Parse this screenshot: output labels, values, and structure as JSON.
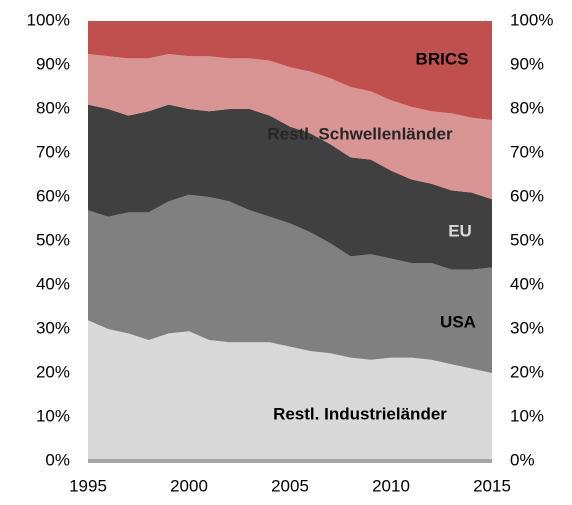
{
  "chart_data": {
    "type": "stacked_area",
    "x": [
      1995,
      1996,
      1997,
      1998,
      1999,
      2000,
      2001,
      2002,
      2003,
      2004,
      2005,
      2006,
      2007,
      2008,
      2009,
      2010,
      2011,
      2012,
      2013,
      2014,
      2015
    ],
    "series": [
      {
        "name": "Restl. Industrieländer",
        "color": "#d9d9d9",
        "values": [
          32,
          30,
          29,
          27.5,
          29,
          29.5,
          27.5,
          27,
          27,
          27,
          26,
          25,
          24.5,
          23.5,
          23,
          23.5,
          23.5,
          23,
          22,
          21,
          20
        ]
      },
      {
        "name": "USA",
        "color": "#808080",
        "values": [
          25,
          25.5,
          27.5,
          29,
          30,
          31,
          32.5,
          32,
          30,
          28.5,
          28,
          27,
          25,
          23,
          24,
          22.5,
          21.5,
          22,
          21.5,
          22.5,
          24
        ]
      },
      {
        "name": "EU",
        "color": "#404040",
        "values": [
          24,
          24.5,
          22,
          23,
          22,
          19.5,
          19.5,
          21,
          23,
          23,
          22,
          22.5,
          22.5,
          22.5,
          21.5,
          20,
          19,
          18,
          18,
          17.5,
          15.5
        ]
      },
      {
        "name": "Restl. Schwellenländer",
        "color": "#d99594",
        "values": [
          11.5,
          12,
          13,
          12,
          11.5,
          12,
          12.5,
          11.5,
          11.5,
          12.5,
          13.5,
          14,
          15,
          16,
          15.5,
          16,
          16.5,
          16.5,
          17.5,
          17,
          18
        ]
      },
      {
        "name": "BRICS",
        "color": "#c0504d",
        "values": [
          7.5,
          8,
          8.5,
          8.5,
          7.5,
          8,
          8,
          8.5,
          8.5,
          9,
          10.5,
          11.5,
          13,
          15,
          16,
          18,
          19.5,
          20.5,
          21,
          22,
          22.5
        ]
      }
    ],
    "xlim": [
      1995,
      2015
    ],
    "xticks": [
      1995,
      2000,
      2005,
      2010,
      2015
    ],
    "ylim": [
      0,
      100
    ],
    "yticks": [
      {
        "value": 0,
        "label": "0%"
      },
      {
        "value": 10,
        "label": "10%"
      },
      {
        "value": 20,
        "label": "20%"
      },
      {
        "value": 30,
        "label": "30%"
      },
      {
        "value": 40,
        "label": "40%"
      },
      {
        "value": 50,
        "label": "50%"
      },
      {
        "value": 60,
        "label": "60%"
      },
      {
        "value": 70,
        "label": "70%"
      },
      {
        "value": 80,
        "label": "80%"
      },
      {
        "value": 90,
        "label": "90%"
      },
      {
        "value": 100,
        "label": "100%"
      }
    ],
    "y2lim": [
      0,
      100
    ],
    "y2ticks": [
      {
        "value": 0,
        "label": "0%"
      },
      {
        "value": 10,
        "label": "10%"
      },
      {
        "value": 20,
        "label": "20%"
      },
      {
        "value": 30,
        "label": "30%"
      },
      {
        "value": 40,
        "label": "40%"
      },
      {
        "value": 50,
        "label": "50%"
      },
      {
        "value": 60,
        "label": "60%"
      },
      {
        "value": 70,
        "label": "70%"
      },
      {
        "value": 80,
        "label": "80%"
      },
      {
        "value": 90,
        "label": "90%"
      },
      {
        "value": 100,
        "label": "100%"
      }
    ]
  }
}
